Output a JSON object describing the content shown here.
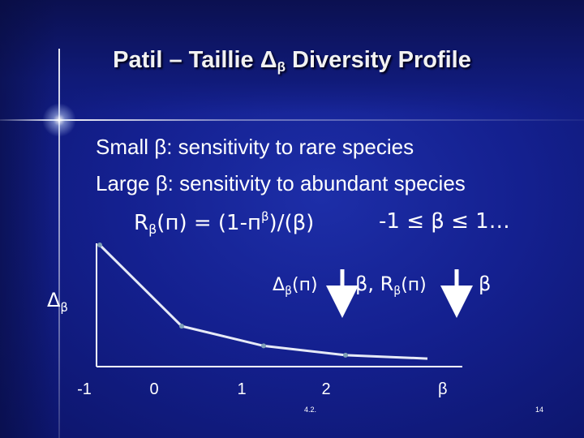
{
  "title": {
    "prefix": "Patil – Taillie Δ",
    "sub": "β",
    "suffix": " Diversity Profile"
  },
  "lines": {
    "l1": "Small β: sensitivity to rare species",
    "l2": "Large β: sensitivity to abundant species",
    "l3_r": "R",
    "l3_sub": "β",
    "l3_a": "(п) = (1-п",
    "l3_sup": "β",
    "l3_b": ")/(β)",
    "l3_range": "-1 ≤ β ≤ 1…"
  },
  "diagram": {
    "ylabel": "Δ",
    "ylabel_sub": "β",
    "func_delta": "Δ",
    "func_delta_sub": "β",
    "func_delta_arg": "(п)",
    "func_mid": "β, R",
    "func_mid_sub": "β",
    "func_mid_arg": "(п)",
    "func_out": "β"
  },
  "chart_data": {
    "type": "line",
    "xlabel": "β",
    "ylabel": "Δβ",
    "x_ticks": [
      "-1",
      "0",
      "1",
      "2"
    ],
    "series": [
      {
        "x": [
          -1,
          0,
          1,
          2,
          3
        ],
        "y": [
          1.0,
          0.3,
          0.13,
          0.05,
          0.02
        ],
        "markers": [
          true,
          true,
          true,
          true,
          false
        ]
      }
    ],
    "ylim": [
      0,
      1.05
    ],
    "xlim": [
      -1,
      3
    ]
  },
  "footer": {
    "left": "4.2.",
    "right": "14"
  },
  "colors": {
    "accent_line": "#dfe4f5",
    "marker": "#7fa0b8",
    "arrow": "#ffffff"
  }
}
